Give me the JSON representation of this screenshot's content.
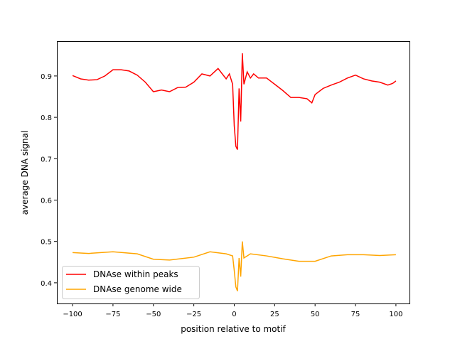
{
  "chart_data": {
    "type": "line",
    "title": "",
    "xlabel": "position relative to motif",
    "ylabel": "average DNA signal",
    "xlim": [
      -109.7,
      108.4
    ],
    "ylim": [
      0.35,
      0.984
    ],
    "xticks": [
      -100,
      -75,
      -50,
      -25,
      0,
      25,
      50,
      75,
      100
    ],
    "xtick_labels": [
      "−100",
      "−75",
      "−50",
      "−25",
      "0",
      "25",
      "50",
      "75",
      "100"
    ],
    "yticks": [
      0.4,
      0.5,
      0.6,
      0.7,
      0.8,
      0.9
    ],
    "ytick_labels": [
      "0.4",
      "0.5",
      "0.6",
      "0.7",
      "0.8",
      "0.9"
    ],
    "grid": false,
    "legend_position": "lower-left",
    "series": [
      {
        "name": "DNAse within peaks",
        "color": "#ff0000",
        "x": [
          -100,
          -95,
          -90,
          -85,
          -80,
          -75,
          -70,
          -65,
          -60,
          -55,
          -50,
          -45,
          -40,
          -35,
          -30,
          -25,
          -20,
          -15,
          -10,
          -5,
          -3,
          -1,
          0,
          1,
          2,
          3,
          4,
          5,
          6,
          8,
          10,
          12,
          15,
          20,
          25,
          30,
          35,
          40,
          45,
          48,
          50,
          55,
          60,
          65,
          70,
          75,
          80,
          85,
          90,
          95,
          98,
          100
        ],
        "y": [
          0.901,
          0.893,
          0.89,
          0.891,
          0.9,
          0.915,
          0.915,
          0.912,
          0.902,
          0.885,
          0.862,
          0.866,
          0.862,
          0.872,
          0.873,
          0.885,
          0.905,
          0.9,
          0.918,
          0.893,
          0.905,
          0.88,
          0.78,
          0.73,
          0.722,
          0.87,
          0.79,
          0.955,
          0.88,
          0.91,
          0.895,
          0.905,
          0.895,
          0.895,
          0.88,
          0.865,
          0.848,
          0.848,
          0.845,
          0.835,
          0.855,
          0.87,
          0.878,
          0.885,
          0.895,
          0.902,
          0.893,
          0.888,
          0.885,
          0.878,
          0.882,
          0.888
        ]
      },
      {
        "name": "DNAse genome wide",
        "color": "#ffa500",
        "x": [
          -100,
          -90,
          -75,
          -60,
          -50,
          -40,
          -25,
          -15,
          -5,
          -1,
          0,
          1,
          2,
          3,
          4,
          5,
          6,
          10,
          20,
          30,
          40,
          50,
          60,
          70,
          80,
          90,
          100
        ],
        "y": [
          0.473,
          0.471,
          0.475,
          0.47,
          0.457,
          0.455,
          0.462,
          0.475,
          0.47,
          0.465,
          0.43,
          0.39,
          0.38,
          0.46,
          0.415,
          0.5,
          0.46,
          0.47,
          0.465,
          0.458,
          0.452,
          0.452,
          0.465,
          0.468,
          0.468,
          0.466,
          0.468
        ]
      }
    ]
  }
}
